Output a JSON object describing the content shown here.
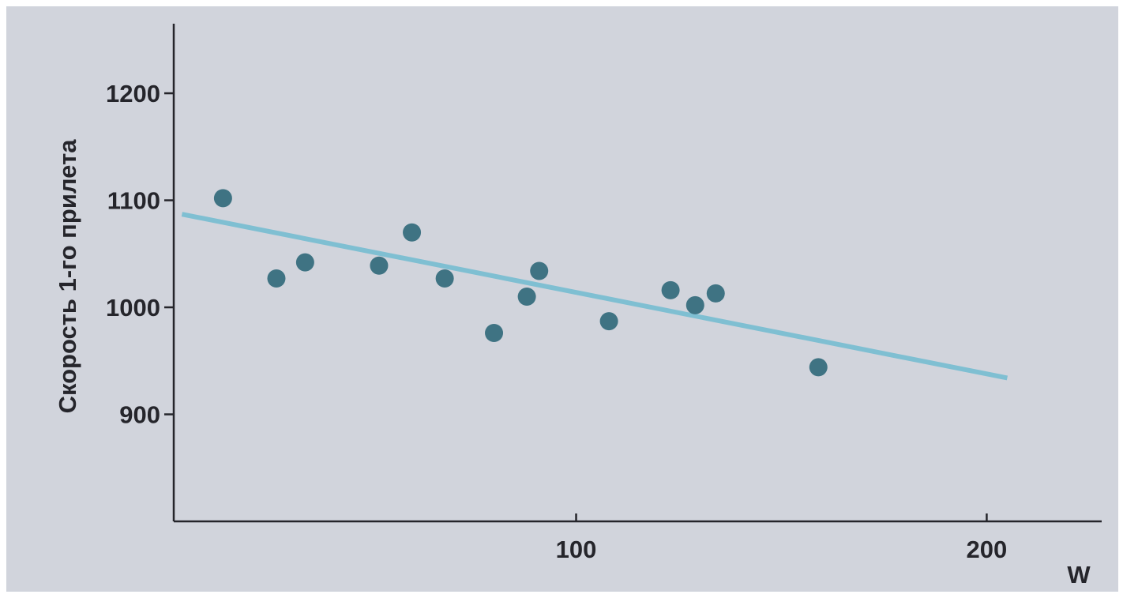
{
  "chart_data": {
    "type": "scatter",
    "title": "",
    "xlabel": "W",
    "ylabel": "Скорость 1-го прилета",
    "xlim": [
      2,
      228
    ],
    "ylim": [
      800,
      1265
    ],
    "x_ticks": [
      100,
      200
    ],
    "y_ticks": [
      900,
      1000,
      1100,
      1200
    ],
    "grid": false,
    "legend": "none",
    "points": [
      {
        "x": 14,
        "y": 1102
      },
      {
        "x": 27,
        "y": 1027
      },
      {
        "x": 34,
        "y": 1042
      },
      {
        "x": 52,
        "y": 1039
      },
      {
        "x": 60,
        "y": 1070
      },
      {
        "x": 68,
        "y": 1027
      },
      {
        "x": 80,
        "y": 976
      },
      {
        "x": 88,
        "y": 1010
      },
      {
        "x": 91,
        "y": 1034
      },
      {
        "x": 108,
        "y": 987
      },
      {
        "x": 123,
        "y": 1016
      },
      {
        "x": 129,
        "y": 1002
      },
      {
        "x": 134,
        "y": 1013
      },
      {
        "x": 159,
        "y": 944
      }
    ],
    "trendline": {
      "x": [
        4,
        205
      ],
      "y": [
        1087,
        934
      ]
    },
    "colors": {
      "background": "#d1d4dc",
      "axis": "#25252b",
      "points": "#3f7383",
      "trendline": "#7fbfd2"
    }
  }
}
